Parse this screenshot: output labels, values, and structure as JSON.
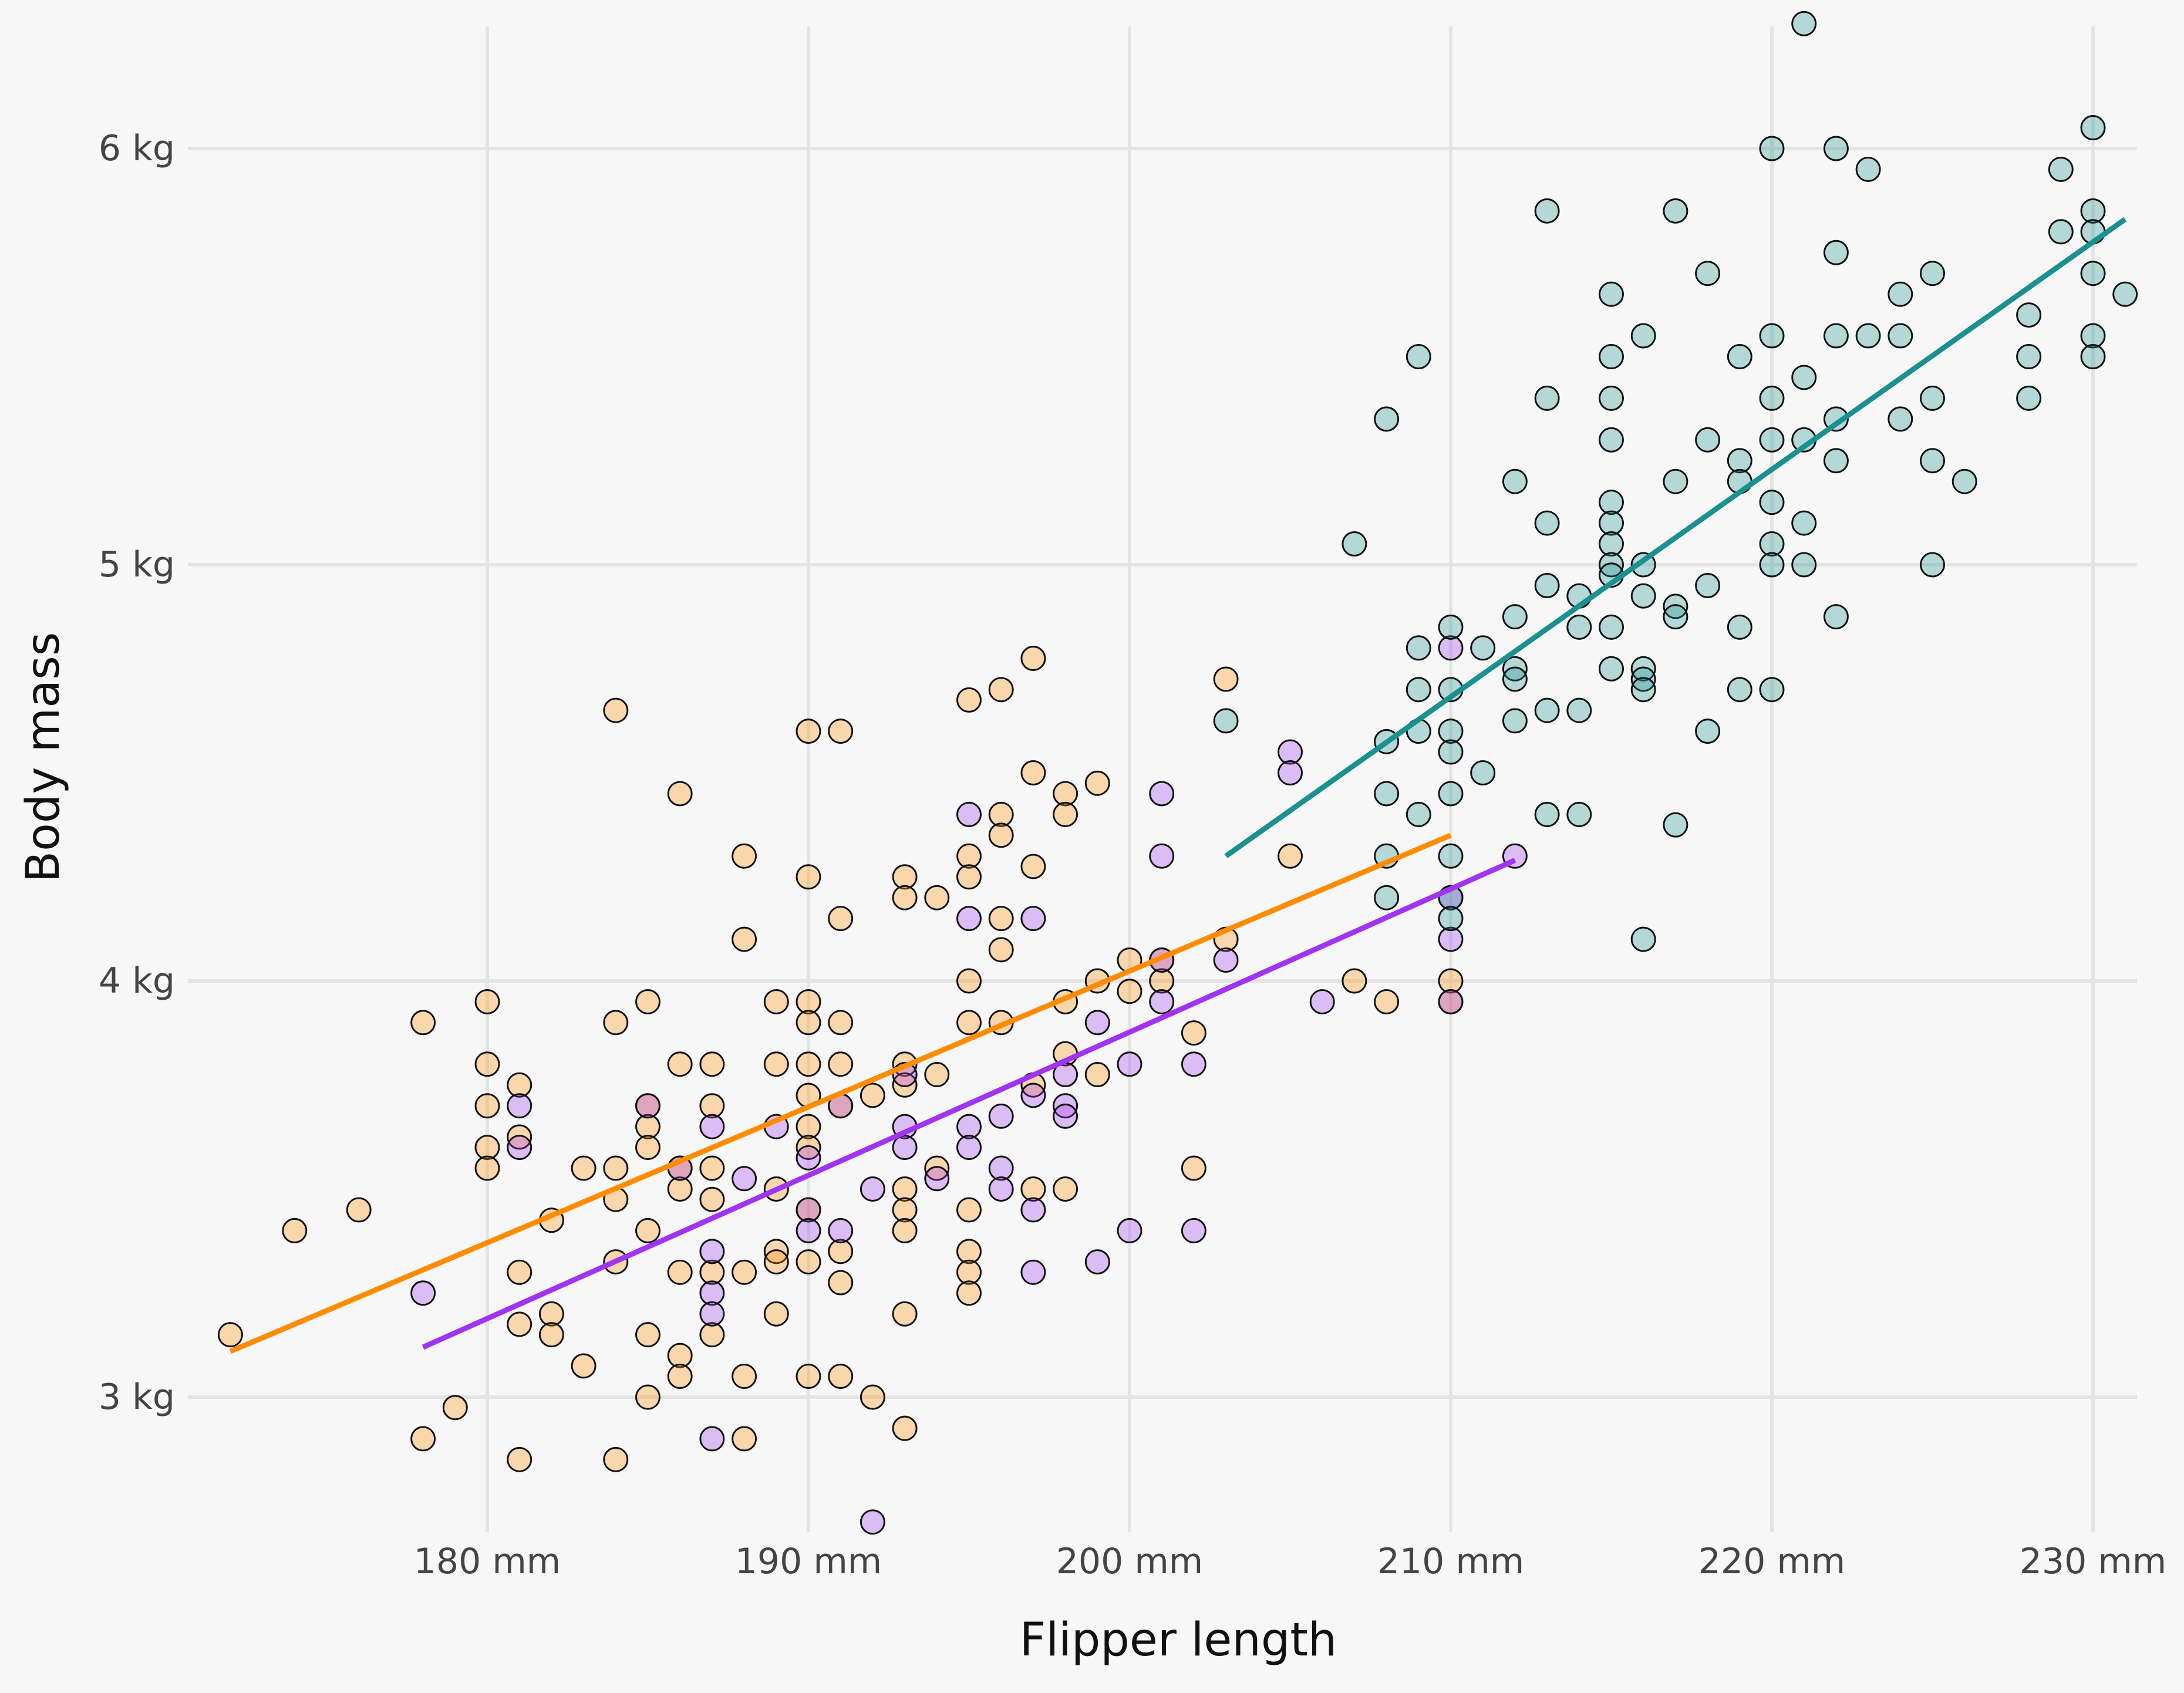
{
  "chart_data": {
    "type": "scatter",
    "title": "",
    "xlabel": "Flipper length",
    "ylabel": "Body mass",
    "xlim": [
      171.5,
      232
    ],
    "ylim": [
      2.6,
      6.3
    ],
    "x_ticks": [
      180,
      190,
      200,
      210,
      220,
      230
    ],
    "x_tick_labels": [
      "180 mm",
      "190 mm",
      "200 mm",
      "210 mm",
      "220 mm",
      "230 mm"
    ],
    "y_ticks": [
      3,
      4,
      5,
      6
    ],
    "y_tick_labels": [
      "3 kg",
      "4 kg",
      "5 kg",
      "6 kg"
    ],
    "grid": true,
    "legend": "none",
    "series": [
      {
        "color": "#ff8c00",
        "points": [
          [
            172,
            3.15
          ],
          [
            174,
            3.4
          ],
          [
            176,
            3.45
          ],
          [
            178,
            3.9
          ],
          [
            178,
            2.9
          ],
          [
            179,
            2.975
          ],
          [
            180,
            3.95
          ],
          [
            180,
            3.8
          ],
          [
            180,
            3.7
          ],
          [
            180,
            3.6
          ],
          [
            180,
            3.55
          ],
          [
            181,
            3.75
          ],
          [
            181,
            3.625
          ],
          [
            181,
            3.3
          ],
          [
            181,
            3.175
          ],
          [
            181,
            2.85
          ],
          [
            182,
            3.425
          ],
          [
            182,
            3.2
          ],
          [
            182,
            3.15
          ],
          [
            183,
            3.55
          ],
          [
            183,
            3.075
          ],
          [
            184,
            4.65
          ],
          [
            184,
            3.9
          ],
          [
            184,
            3.55
          ],
          [
            184,
            3.475
          ],
          [
            184,
            3.325
          ],
          [
            184,
            2.85
          ],
          [
            185,
            3.95
          ],
          [
            185,
            3.7
          ],
          [
            185,
            3.65
          ],
          [
            185,
            3.6
          ],
          [
            185,
            3.4
          ],
          [
            185,
            3.15
          ],
          [
            185,
            3.0
          ],
          [
            186,
            4.45
          ],
          [
            186,
            3.8
          ],
          [
            186,
            3.55
          ],
          [
            186,
            3.5
          ],
          [
            186,
            3.3
          ],
          [
            186,
            3.1
          ],
          [
            186,
            3.05
          ],
          [
            187,
            3.8
          ],
          [
            187,
            3.7
          ],
          [
            187,
            3.55
          ],
          [
            187,
            3.475
          ],
          [
            187,
            3.3
          ],
          [
            187,
            3.15
          ],
          [
            188,
            4.3
          ],
          [
            188,
            4.1
          ],
          [
            188,
            3.3
          ],
          [
            188,
            3.05
          ],
          [
            188,
            2.9
          ],
          [
            189,
            3.95
          ],
          [
            189,
            3.8
          ],
          [
            189,
            3.5
          ],
          [
            189,
            3.35
          ],
          [
            189,
            3.325
          ],
          [
            189,
            3.2
          ],
          [
            190,
            4.6
          ],
          [
            190,
            4.25
          ],
          [
            190,
            3.95
          ],
          [
            190,
            3.9
          ],
          [
            190,
            3.8
          ],
          [
            190,
            3.725
          ],
          [
            190,
            3.65
          ],
          [
            190,
            3.6
          ],
          [
            190,
            3.45
          ],
          [
            190,
            3.325
          ],
          [
            190,
            3.05
          ],
          [
            191,
            4.6
          ],
          [
            191,
            4.15
          ],
          [
            191,
            3.9
          ],
          [
            191,
            3.8
          ],
          [
            191,
            3.7
          ],
          [
            191,
            3.35
          ],
          [
            191,
            3.275
          ],
          [
            191,
            3.05
          ],
          [
            192,
            3.725
          ],
          [
            192,
            3.0
          ],
          [
            193,
            4.25
          ],
          [
            193,
            4.2
          ],
          [
            193,
            3.8
          ],
          [
            193,
            3.75
          ],
          [
            193,
            3.5
          ],
          [
            193,
            3.45
          ],
          [
            193,
            3.4
          ],
          [
            193,
            3.2
          ],
          [
            193,
            2.925
          ],
          [
            194,
            4.2
          ],
          [
            194,
            3.775
          ],
          [
            194,
            3.55
          ],
          [
            195,
            4.675
          ],
          [
            195,
            4.3
          ],
          [
            195,
            4.25
          ],
          [
            195,
            4.0
          ],
          [
            195,
            3.9
          ],
          [
            195,
            3.45
          ],
          [
            195,
            3.35
          ],
          [
            195,
            3.3
          ],
          [
            195,
            3.25
          ],
          [
            196,
            4.7
          ],
          [
            196,
            4.4
          ],
          [
            196,
            4.35
          ],
          [
            196,
            4.15
          ],
          [
            196,
            4.075
          ],
          [
            196,
            3.9
          ],
          [
            197,
            4.775
          ],
          [
            197,
            4.5
          ],
          [
            197,
            4.275
          ],
          [
            197,
            3.75
          ],
          [
            197,
            3.5
          ],
          [
            198,
            4.45
          ],
          [
            198,
            4.4
          ],
          [
            198,
            3.95
          ],
          [
            198,
            3.825
          ],
          [
            198,
            3.5
          ],
          [
            199,
            4.475
          ],
          [
            199,
            4.0
          ],
          [
            199,
            3.775
          ],
          [
            200,
            4.05
          ],
          [
            200,
            3.975
          ],
          [
            201,
            4.05
          ],
          [
            201,
            4.0
          ],
          [
            202,
            3.875
          ],
          [
            202,
            3.55
          ],
          [
            203,
            4.725
          ],
          [
            203,
            4.1
          ],
          [
            205,
            4.3
          ],
          [
            207,
            4.0
          ],
          [
            208,
            3.95
          ],
          [
            210,
            4.0
          ],
          [
            210,
            3.95
          ]
        ]
      },
      {
        "color": "#a034f0",
        "points": [
          [
            178,
            3.25
          ],
          [
            181,
            3.7
          ],
          [
            181,
            3.6
          ],
          [
            185,
            3.7
          ],
          [
            186,
            3.55
          ],
          [
            187,
            3.65
          ],
          [
            187,
            3.35
          ],
          [
            187,
            3.25
          ],
          [
            187,
            3.2
          ],
          [
            187,
            2.9
          ],
          [
            188,
            3.525
          ],
          [
            189,
            3.65
          ],
          [
            190,
            3.575
          ],
          [
            190,
            3.45
          ],
          [
            190,
            3.4
          ],
          [
            191,
            3.7
          ],
          [
            191,
            3.4
          ],
          [
            192,
            3.5
          ],
          [
            192,
            2.7
          ],
          [
            193,
            3.775
          ],
          [
            193,
            3.65
          ],
          [
            193,
            3.6
          ],
          [
            194,
            3.525
          ],
          [
            195,
            4.4
          ],
          [
            195,
            4.15
          ],
          [
            195,
            3.65
          ],
          [
            195,
            3.6
          ],
          [
            196,
            3.675
          ],
          [
            196,
            3.55
          ],
          [
            196,
            3.5
          ],
          [
            197,
            4.15
          ],
          [
            197,
            3.725
          ],
          [
            197,
            3.45
          ],
          [
            197,
            3.3
          ],
          [
            198,
            3.775
          ],
          [
            198,
            3.7
          ],
          [
            198,
            3.675
          ],
          [
            199,
            3.9
          ],
          [
            199,
            3.325
          ],
          [
            200,
            3.8
          ],
          [
            200,
            3.4
          ],
          [
            201,
            4.45
          ],
          [
            201,
            4.3
          ],
          [
            201,
            4.05
          ],
          [
            201,
            3.95
          ],
          [
            202,
            3.8
          ],
          [
            202,
            3.4
          ],
          [
            203,
            4.05
          ],
          [
            205,
            4.55
          ],
          [
            205,
            4.5
          ],
          [
            206,
            3.95
          ],
          [
            210,
            4.8
          ],
          [
            210,
            4.2
          ],
          [
            210,
            4.1
          ],
          [
            210,
            3.95
          ],
          [
            212,
            4.3
          ]
        ]
      },
      {
        "color": "#1b9090",
        "points": [
          [
            203,
            4.625
          ],
          [
            207,
            5.05
          ],
          [
            208,
            5.35
          ],
          [
            208,
            4.575
          ],
          [
            208,
            4.45
          ],
          [
            208,
            4.3
          ],
          [
            208,
            4.2
          ],
          [
            209,
            5.5
          ],
          [
            209,
            4.8
          ],
          [
            209,
            4.7
          ],
          [
            209,
            4.6
          ],
          [
            209,
            4.4
          ],
          [
            210,
            4.85
          ],
          [
            210,
            4.7
          ],
          [
            210,
            4.6
          ],
          [
            210,
            4.55
          ],
          [
            210,
            4.45
          ],
          [
            210,
            4.3
          ],
          [
            210,
            4.2
          ],
          [
            210,
            4.15
          ],
          [
            211,
            4.8
          ],
          [
            211,
            4.5
          ],
          [
            212,
            5.2
          ],
          [
            212,
            4.875
          ],
          [
            212,
            4.75
          ],
          [
            212,
            4.725
          ],
          [
            212,
            4.625
          ],
          [
            213,
            5.85
          ],
          [
            213,
            5.4
          ],
          [
            213,
            5.1
          ],
          [
            213,
            4.95
          ],
          [
            213,
            4.65
          ],
          [
            213,
            4.4
          ],
          [
            214,
            4.925
          ],
          [
            214,
            4.85
          ],
          [
            214,
            4.65
          ],
          [
            214,
            4.4
          ],
          [
            215,
            5.65
          ],
          [
            215,
            5.5
          ],
          [
            215,
            5.4
          ],
          [
            215,
            5.3
          ],
          [
            215,
            5.15
          ],
          [
            215,
            5.1
          ],
          [
            215,
            5.05
          ],
          [
            215,
            5.0
          ],
          [
            215,
            4.975
          ],
          [
            215,
            4.85
          ],
          [
            215,
            4.75
          ],
          [
            216,
            5.55
          ],
          [
            216,
            5.0
          ],
          [
            216,
            4.925
          ],
          [
            216,
            4.75
          ],
          [
            216,
            4.725
          ],
          [
            216,
            4.7
          ],
          [
            216,
            4.1
          ],
          [
            217,
            5.85
          ],
          [
            217,
            5.2
          ],
          [
            217,
            4.9
          ],
          [
            217,
            4.875
          ],
          [
            217,
            4.375
          ],
          [
            218,
            5.7
          ],
          [
            218,
            5.3
          ],
          [
            218,
            4.95
          ],
          [
            218,
            4.6
          ],
          [
            219,
            5.5
          ],
          [
            219,
            5.25
          ],
          [
            219,
            5.2
          ],
          [
            219,
            4.85
          ],
          [
            219,
            4.7
          ],
          [
            220,
            6.0
          ],
          [
            220,
            5.55
          ],
          [
            220,
            5.4
          ],
          [
            220,
            5.3
          ],
          [
            220,
            5.15
          ],
          [
            220,
            5.05
          ],
          [
            220,
            5.0
          ],
          [
            220,
            4.7
          ],
          [
            221,
            6.3
          ],
          [
            221,
            5.45
          ],
          [
            221,
            5.3
          ],
          [
            221,
            5.1
          ],
          [
            221,
            5.0
          ],
          [
            222,
            6.0
          ],
          [
            222,
            5.75
          ],
          [
            222,
            5.55
          ],
          [
            222,
            5.35
          ],
          [
            222,
            5.25
          ],
          [
            222,
            4.875
          ],
          [
            223,
            5.95
          ],
          [
            223,
            5.55
          ],
          [
            224,
            5.65
          ],
          [
            224,
            5.55
          ],
          [
            224,
            5.35
          ],
          [
            225,
            5.7
          ],
          [
            225,
            5.4
          ],
          [
            225,
            5.25
          ],
          [
            225,
            5.0
          ],
          [
            226,
            5.2
          ],
          [
            228,
            5.6
          ],
          [
            228,
            5.5
          ],
          [
            228,
            5.4
          ],
          [
            229,
            5.95
          ],
          [
            229,
            5.8
          ],
          [
            230,
            6.05
          ],
          [
            230,
            5.85
          ],
          [
            230,
            5.8
          ],
          [
            230,
            5.7
          ],
          [
            230,
            5.55
          ],
          [
            230,
            5.5
          ],
          [
            231,
            5.65
          ]
        ]
      }
    ],
    "trend_lines": [
      {
        "color": "#ff8c00",
        "x": [
          172,
          210
        ],
        "y": [
          3.11,
          4.35
        ]
      },
      {
        "color": "#a034f0",
        "x": [
          178,
          212
        ],
        "y": [
          3.12,
          4.29
        ]
      },
      {
        "color": "#1b9090",
        "x": [
          203,
          231
        ],
        "y": [
          4.3,
          5.83
        ]
      }
    ]
  }
}
